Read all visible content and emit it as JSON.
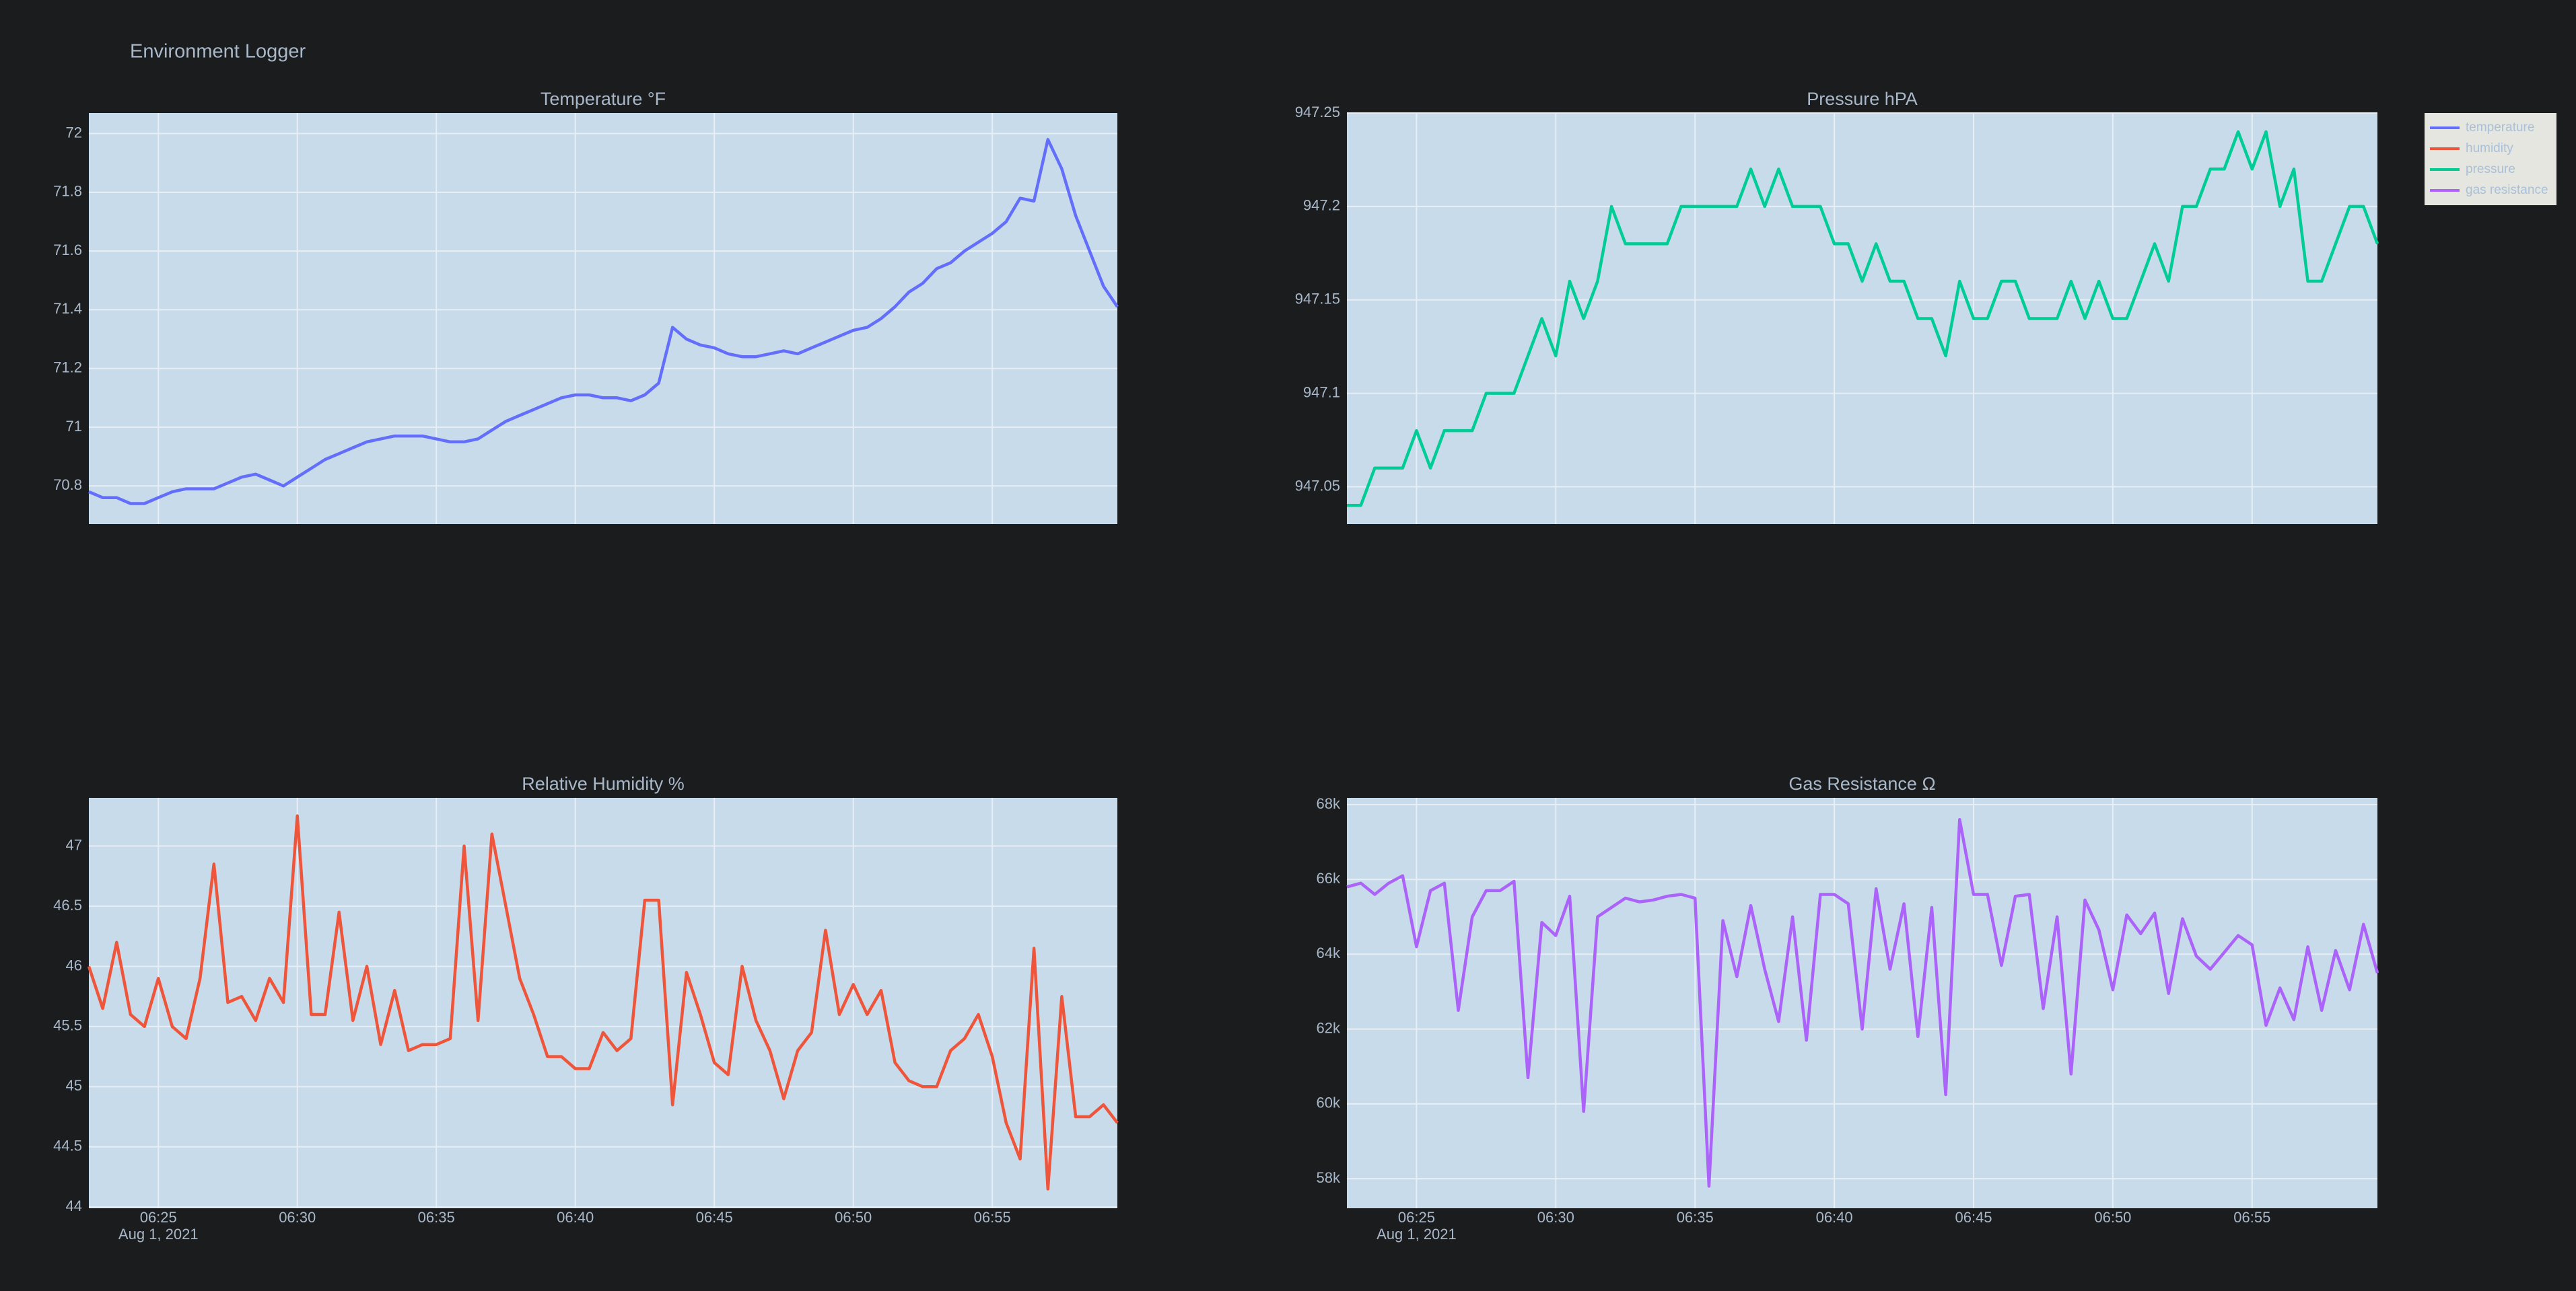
{
  "title": "Environment Logger",
  "legend_position": "right",
  "chart_data": [
    {
      "type": "line",
      "title": "Temperature °F",
      "x": [
        "2021-08-01 06:22:30",
        "2021-08-01 06:23:00",
        "2021-08-01 06:23:30",
        "2021-08-01 06:24:00",
        "2021-08-01 06:24:30",
        "2021-08-01 06:25:00",
        "2021-08-01 06:25:30",
        "2021-08-01 06:26:00",
        "2021-08-01 06:26:30",
        "2021-08-01 06:27:00",
        "2021-08-01 06:27:30",
        "2021-08-01 06:28:00",
        "2021-08-01 06:28:30",
        "2021-08-01 06:29:00",
        "2021-08-01 06:29:30",
        "2021-08-01 06:30:00",
        "2021-08-01 06:30:30",
        "2021-08-01 06:31:00",
        "2021-08-01 06:31:30",
        "2021-08-01 06:32:00",
        "2021-08-01 06:32:30",
        "2021-08-01 06:33:00",
        "2021-08-01 06:33:30",
        "2021-08-01 06:34:00",
        "2021-08-01 06:34:30",
        "2021-08-01 06:35:00",
        "2021-08-01 06:35:30",
        "2021-08-01 06:36:00",
        "2021-08-01 06:36:30",
        "2021-08-01 06:37:00",
        "2021-08-01 06:37:30",
        "2021-08-01 06:38:00",
        "2021-08-01 06:38:30",
        "2021-08-01 06:39:00",
        "2021-08-01 06:39:30",
        "2021-08-01 06:40:00",
        "2021-08-01 06:40:30",
        "2021-08-01 06:41:00",
        "2021-08-01 06:41:30",
        "2021-08-01 06:42:00",
        "2021-08-01 06:42:30",
        "2021-08-01 06:43:00",
        "2021-08-01 06:43:30",
        "2021-08-01 06:44:00",
        "2021-08-01 06:44:30",
        "2021-08-01 06:45:00",
        "2021-08-01 06:45:30",
        "2021-08-01 06:46:00",
        "2021-08-01 06:46:30",
        "2021-08-01 06:47:00",
        "2021-08-01 06:47:30",
        "2021-08-01 06:48:00",
        "2021-08-01 06:48:30",
        "2021-08-01 06:49:00",
        "2021-08-01 06:49:30",
        "2021-08-01 06:50:00",
        "2021-08-01 06:50:30",
        "2021-08-01 06:51:00",
        "2021-08-01 06:51:30",
        "2021-08-01 06:52:00",
        "2021-08-01 06:52:30",
        "2021-08-01 06:53:00",
        "2021-08-01 06:53:30",
        "2021-08-01 06:54:00",
        "2021-08-01 06:54:30",
        "2021-08-01 06:55:00",
        "2021-08-01 06:55:30",
        "2021-08-01 06:56:00",
        "2021-08-01 06:56:30",
        "2021-08-01 06:57:00",
        "2021-08-01 06:57:30",
        "2021-08-01 06:58:00",
        "2021-08-01 06:58:30",
        "2021-08-01 06:59:00",
        "2021-08-01 06:59:30"
      ],
      "series": [
        {
          "name": "temperature",
          "color": "#636efa",
          "values": [
            70.78,
            70.76,
            70.76,
            70.74,
            70.74,
            70.76,
            70.78,
            70.79,
            70.79,
            70.79,
            70.81,
            70.83,
            70.84,
            70.82,
            70.8,
            70.83,
            70.86,
            70.89,
            70.91,
            70.93,
            70.95,
            70.96,
            70.97,
            70.97,
            70.97,
            70.96,
            70.95,
            70.95,
            70.96,
            70.99,
            71.02,
            71.04,
            71.06,
            71.08,
            71.1,
            71.11,
            71.11,
            71.1,
            71.1,
            71.09,
            71.11,
            71.15,
            71.34,
            71.3,
            71.28,
            71.27,
            71.25,
            71.24,
            71.24,
            71.25,
            71.26,
            71.25,
            71.27,
            71.29,
            71.31,
            71.33,
            71.34,
            71.37,
            71.41,
            71.46,
            71.49,
            71.54,
            71.56,
            71.6,
            71.63,
            71.66,
            71.7,
            71.78,
            71.77,
            71.98,
            71.88,
            71.72,
            71.6,
            71.48,
            71.41
          ]
        }
      ],
      "xlim": [
        "2021-08-01 06:22:30",
        "2021-08-01 06:59:30"
      ],
      "xticks": [
        "2021-08-01 06:25",
        "2021-08-01 06:30",
        "2021-08-01 06:35",
        "2021-08-01 06:40",
        "2021-08-01 06:45",
        "2021-08-01 06:50",
        "2021-08-01 06:55"
      ],
      "ylim": [
        70.67,
        72.07
      ],
      "yticks": [
        70.8,
        71,
        71.2,
        71.4,
        71.6,
        71.8,
        72
      ],
      "grid": true
    },
    {
      "type": "line",
      "title": "Relative Humidity %",
      "x": [
        "2021-08-01 06:22:30",
        "2021-08-01 06:23:00",
        "2021-08-01 06:23:30",
        "2021-08-01 06:24:00",
        "2021-08-01 06:24:30",
        "2021-08-01 06:25:00",
        "2021-08-01 06:25:30",
        "2021-08-01 06:26:00",
        "2021-08-01 06:26:30",
        "2021-08-01 06:27:00",
        "2021-08-01 06:27:30",
        "2021-08-01 06:28:00",
        "2021-08-01 06:28:30",
        "2021-08-01 06:29:00",
        "2021-08-01 06:29:30",
        "2021-08-01 06:30:00",
        "2021-08-01 06:30:30",
        "2021-08-01 06:31:00",
        "2021-08-01 06:31:30",
        "2021-08-01 06:32:00",
        "2021-08-01 06:32:30",
        "2021-08-01 06:33:00",
        "2021-08-01 06:33:30",
        "2021-08-01 06:34:00",
        "2021-08-01 06:34:30",
        "2021-08-01 06:35:00",
        "2021-08-01 06:35:30",
        "2021-08-01 06:36:00",
        "2021-08-01 06:36:30",
        "2021-08-01 06:37:00",
        "2021-08-01 06:37:30",
        "2021-08-01 06:38:00",
        "2021-08-01 06:38:30",
        "2021-08-01 06:39:00",
        "2021-08-01 06:39:30",
        "2021-08-01 06:40:00",
        "2021-08-01 06:40:30",
        "2021-08-01 06:41:00",
        "2021-08-01 06:41:30",
        "2021-08-01 06:42:00",
        "2021-08-01 06:42:30",
        "2021-08-01 06:43:00",
        "2021-08-01 06:43:30",
        "2021-08-01 06:44:00",
        "2021-08-01 06:44:30",
        "2021-08-01 06:45:00",
        "2021-08-01 06:45:30",
        "2021-08-01 06:46:00",
        "2021-08-01 06:46:30",
        "2021-08-01 06:47:00",
        "2021-08-01 06:47:30",
        "2021-08-01 06:48:00",
        "2021-08-01 06:48:30",
        "2021-08-01 06:49:00",
        "2021-08-01 06:49:30",
        "2021-08-01 06:50:00",
        "2021-08-01 06:50:30",
        "2021-08-01 06:51:00",
        "2021-08-01 06:51:30",
        "2021-08-01 06:52:00",
        "2021-08-01 06:52:30",
        "2021-08-01 06:53:00",
        "2021-08-01 06:53:30",
        "2021-08-01 06:54:00",
        "2021-08-01 06:54:30",
        "2021-08-01 06:55:00",
        "2021-08-01 06:55:30",
        "2021-08-01 06:56:00",
        "2021-08-01 06:56:30",
        "2021-08-01 06:57:00",
        "2021-08-01 06:57:30",
        "2021-08-01 06:58:00",
        "2021-08-01 06:58:30",
        "2021-08-01 06:59:00",
        "2021-08-01 06:59:30"
      ],
      "series": [
        {
          "name": "humidity",
          "color": "#ef553b",
          "values": [
            46.0,
            45.65,
            46.2,
            45.6,
            45.5,
            45.9,
            45.5,
            45.4,
            45.9,
            46.85,
            45.7,
            45.75,
            45.55,
            45.9,
            45.7,
            47.25,
            45.6,
            45.6,
            46.45,
            45.55,
            46.0,
            45.35,
            45.8,
            45.3,
            45.35,
            45.35,
            45.4,
            47.0,
            45.55,
            47.1,
            46.5,
            45.9,
            45.6,
            45.25,
            45.25,
            45.15,
            45.15,
            45.45,
            45.3,
            45.4,
            46.55,
            46.55,
            44.85,
            45.95,
            45.6,
            45.2,
            45.1,
            46.0,
            45.55,
            45.3,
            44.9,
            45.3,
            45.45,
            46.3,
            45.6,
            45.85,
            45.6,
            45.8,
            45.2,
            45.05,
            45.0,
            45.0,
            45.3,
            45.4,
            45.6,
            45.25,
            44.7,
            44.4,
            46.15,
            44.15,
            45.75,
            44.75,
            44.75,
            44.85,
            44.7
          ]
        }
      ],
      "xlim": [
        "2021-08-01 06:22:30",
        "2021-08-01 06:59:30"
      ],
      "xticks": [
        {
          "value": "2021-08-01 06:25",
          "label": "06:25"
        },
        {
          "value": "2021-08-01 06:30",
          "label": "06:30"
        },
        {
          "value": "2021-08-01 06:35",
          "label": "06:35"
        },
        {
          "value": "2021-08-01 06:40",
          "label": "06:40"
        },
        {
          "value": "2021-08-01 06:45",
          "label": "06:45"
        },
        {
          "value": "2021-08-01 06:50",
          "label": "06:50"
        },
        {
          "value": "2021-08-01 06:55",
          "label": "06:55"
        }
      ],
      "xtick_date": "Aug 1, 2021",
      "ylim": [
        43.99,
        47.4
      ],
      "yticks": [
        44,
        44.5,
        45,
        45.5,
        46,
        46.5,
        47
      ],
      "grid": true
    },
    {
      "type": "line",
      "title": "Pressure hPA",
      "x": [
        "2021-08-01 06:22:30",
        "2021-08-01 06:23:00",
        "2021-08-01 06:23:30",
        "2021-08-01 06:24:00",
        "2021-08-01 06:24:30",
        "2021-08-01 06:25:00",
        "2021-08-01 06:25:30",
        "2021-08-01 06:26:00",
        "2021-08-01 06:26:30",
        "2021-08-01 06:27:00",
        "2021-08-01 06:27:30",
        "2021-08-01 06:28:00",
        "2021-08-01 06:28:30",
        "2021-08-01 06:29:00",
        "2021-08-01 06:29:30",
        "2021-08-01 06:30:00",
        "2021-08-01 06:30:30",
        "2021-08-01 06:31:00",
        "2021-08-01 06:31:30",
        "2021-08-01 06:32:00",
        "2021-08-01 06:32:30",
        "2021-08-01 06:33:00",
        "2021-08-01 06:33:30",
        "2021-08-01 06:34:00",
        "2021-08-01 06:34:30",
        "2021-08-01 06:35:00",
        "2021-08-01 06:35:30",
        "2021-08-01 06:36:00",
        "2021-08-01 06:36:30",
        "2021-08-01 06:37:00",
        "2021-08-01 06:37:30",
        "2021-08-01 06:38:00",
        "2021-08-01 06:38:30",
        "2021-08-01 06:39:00",
        "2021-08-01 06:39:30",
        "2021-08-01 06:40:00",
        "2021-08-01 06:40:30",
        "2021-08-01 06:41:00",
        "2021-08-01 06:41:30",
        "2021-08-01 06:42:00",
        "2021-08-01 06:42:30",
        "2021-08-01 06:43:00",
        "2021-08-01 06:43:30",
        "2021-08-01 06:44:00",
        "2021-08-01 06:44:30",
        "2021-08-01 06:45:00",
        "2021-08-01 06:45:30",
        "2021-08-01 06:46:00",
        "2021-08-01 06:46:30",
        "2021-08-01 06:47:00",
        "2021-08-01 06:47:30",
        "2021-08-01 06:48:00",
        "2021-08-01 06:48:30",
        "2021-08-01 06:49:00",
        "2021-08-01 06:49:30",
        "2021-08-01 06:50:00",
        "2021-08-01 06:50:30",
        "2021-08-01 06:51:00",
        "2021-08-01 06:51:30",
        "2021-08-01 06:52:00",
        "2021-08-01 06:52:30",
        "2021-08-01 06:53:00",
        "2021-08-01 06:53:30",
        "2021-08-01 06:54:00",
        "2021-08-01 06:54:30",
        "2021-08-01 06:55:00",
        "2021-08-01 06:55:30",
        "2021-08-01 06:56:00",
        "2021-08-01 06:56:30",
        "2021-08-01 06:57:00",
        "2021-08-01 06:57:30",
        "2021-08-01 06:58:00",
        "2021-08-01 06:58:30",
        "2021-08-01 06:59:00",
        "2021-08-01 06:59:30"
      ],
      "series": [
        {
          "name": "pressure",
          "color": "#00cc96",
          "values": [
            947.04,
            947.04,
            947.06,
            947.06,
            947.06,
            947.08,
            947.06,
            947.08,
            947.08,
            947.08,
            947.1,
            947.1,
            947.1,
            947.12,
            947.14,
            947.12,
            947.16,
            947.14,
            947.16,
            947.2,
            947.18,
            947.18,
            947.18,
            947.18,
            947.2,
            947.2,
            947.2,
            947.2,
            947.2,
            947.22,
            947.2,
            947.22,
            947.2,
            947.2,
            947.2,
            947.18,
            947.18,
            947.16,
            947.18,
            947.16,
            947.16,
            947.14,
            947.14,
            947.12,
            947.16,
            947.14,
            947.14,
            947.16,
            947.16,
            947.14,
            947.14,
            947.14,
            947.16,
            947.14,
            947.16,
            947.14,
            947.14,
            947.16,
            947.18,
            947.16,
            947.2,
            947.2,
            947.22,
            947.22,
            947.24,
            947.22,
            947.24,
            947.2,
            947.22,
            947.16,
            947.16,
            947.18,
            947.2,
            947.2,
            947.18
          ]
        }
      ],
      "xlim": [
        "2021-08-01 06:22:30",
        "2021-08-01 06:59:30"
      ],
      "xticks": [
        "2021-08-01 06:25",
        "2021-08-01 06:30",
        "2021-08-01 06:35",
        "2021-08-01 06:40",
        "2021-08-01 06:45",
        "2021-08-01 06:50",
        "2021-08-01 06:55"
      ],
      "ylim": [
        947.03,
        947.25
      ],
      "yticks": [
        947.05,
        947.1,
        947.15,
        947.2,
        947.25
      ],
      "grid": true
    },
    {
      "type": "line",
      "title": "Gas Resistance Ω",
      "x": [
        "2021-08-01 06:22:30",
        "2021-08-01 06:23:00",
        "2021-08-01 06:23:30",
        "2021-08-01 06:24:00",
        "2021-08-01 06:24:30",
        "2021-08-01 06:25:00",
        "2021-08-01 06:25:30",
        "2021-08-01 06:26:00",
        "2021-08-01 06:26:30",
        "2021-08-01 06:27:00",
        "2021-08-01 06:27:30",
        "2021-08-01 06:28:00",
        "2021-08-01 06:28:30",
        "2021-08-01 06:29:00",
        "2021-08-01 06:29:30",
        "2021-08-01 06:30:00",
        "2021-08-01 06:30:30",
        "2021-08-01 06:31:00",
        "2021-08-01 06:31:30",
        "2021-08-01 06:32:00",
        "2021-08-01 06:32:30",
        "2021-08-01 06:33:00",
        "2021-08-01 06:33:30",
        "2021-08-01 06:34:00",
        "2021-08-01 06:34:30",
        "2021-08-01 06:35:00",
        "2021-08-01 06:35:30",
        "2021-08-01 06:36:00",
        "2021-08-01 06:36:30",
        "2021-08-01 06:37:00",
        "2021-08-01 06:37:30",
        "2021-08-01 06:38:00",
        "2021-08-01 06:38:30",
        "2021-08-01 06:39:00",
        "2021-08-01 06:39:30",
        "2021-08-01 06:40:00",
        "2021-08-01 06:40:30",
        "2021-08-01 06:41:00",
        "2021-08-01 06:41:30",
        "2021-08-01 06:42:00",
        "2021-08-01 06:42:30",
        "2021-08-01 06:43:00",
        "2021-08-01 06:43:30",
        "2021-08-01 06:44:00",
        "2021-08-01 06:44:30",
        "2021-08-01 06:45:00",
        "2021-08-01 06:45:30",
        "2021-08-01 06:46:00",
        "2021-08-01 06:46:30",
        "2021-08-01 06:47:00",
        "2021-08-01 06:47:30",
        "2021-08-01 06:48:00",
        "2021-08-01 06:48:30",
        "2021-08-01 06:49:00",
        "2021-08-01 06:49:30",
        "2021-08-01 06:50:00",
        "2021-08-01 06:50:30",
        "2021-08-01 06:51:00",
        "2021-08-01 06:51:30",
        "2021-08-01 06:52:00",
        "2021-08-01 06:52:30",
        "2021-08-01 06:53:00",
        "2021-08-01 06:53:30",
        "2021-08-01 06:54:00",
        "2021-08-01 06:54:30",
        "2021-08-01 06:55:00",
        "2021-08-01 06:55:30",
        "2021-08-01 06:56:00",
        "2021-08-01 06:56:30",
        "2021-08-01 06:57:00",
        "2021-08-01 06:57:30",
        "2021-08-01 06:58:00",
        "2021-08-01 06:58:30",
        "2021-08-01 06:59:00",
        "2021-08-01 06:59:30"
      ],
      "series": [
        {
          "name": "gas resistance",
          "color": "#ab63fa",
          "values": [
            65800,
            65900,
            65600,
            65900,
            66100,
            64200,
            65700,
            65900,
            62500,
            65000,
            65700,
            65700,
            65950,
            60700,
            64850,
            64500,
            65550,
            59800,
            65000,
            65250,
            65500,
            65400,
            65450,
            65550,
            65600,
            65500,
            57800,
            64900,
            63400,
            65300,
            63600,
            62200,
            65000,
            61700,
            65600,
            65600,
            65350,
            62000,
            65750,
            63600,
            65350,
            61800,
            65250,
            60250,
            67600,
            65600,
            65600,
            63700,
            65550,
            65600,
            62550,
            65000,
            60800,
            65450,
            64650,
            63050,
            65050,
            64550,
            65100,
            62950,
            64950,
            63950,
            63600,
            64050,
            64500,
            64250,
            62100,
            63100,
            62250,
            64200,
            62500,
            64100,
            63050,
            64800,
            63500
          ]
        }
      ],
      "xlim": [
        "2021-08-01 06:22:30",
        "2021-08-01 06:59:30"
      ],
      "xticks": [
        {
          "value": "2021-08-01 06:25",
          "label": "06:25"
        },
        {
          "value": "2021-08-01 06:30",
          "label": "06:30"
        },
        {
          "value": "2021-08-01 06:35",
          "label": "06:35"
        },
        {
          "value": "2021-08-01 06:40",
          "label": "06:40"
        },
        {
          "value": "2021-08-01 06:45",
          "label": "06:45"
        },
        {
          "value": "2021-08-01 06:50",
          "label": "06:50"
        },
        {
          "value": "2021-08-01 06:55",
          "label": "06:55"
        }
      ],
      "xtick_date": "Aug 1, 2021",
      "ylim": [
        57210,
        68180
      ],
      "yticks": [
        {
          "value": 58000,
          "label": "58k"
        },
        {
          "value": 60000,
          "label": "60k"
        },
        {
          "value": 62000,
          "label": "62k"
        },
        {
          "value": 64000,
          "label": "64k"
        },
        {
          "value": 66000,
          "label": "66k"
        },
        {
          "value": 68000,
          "label": "68k"
        }
      ],
      "grid": true
    }
  ]
}
